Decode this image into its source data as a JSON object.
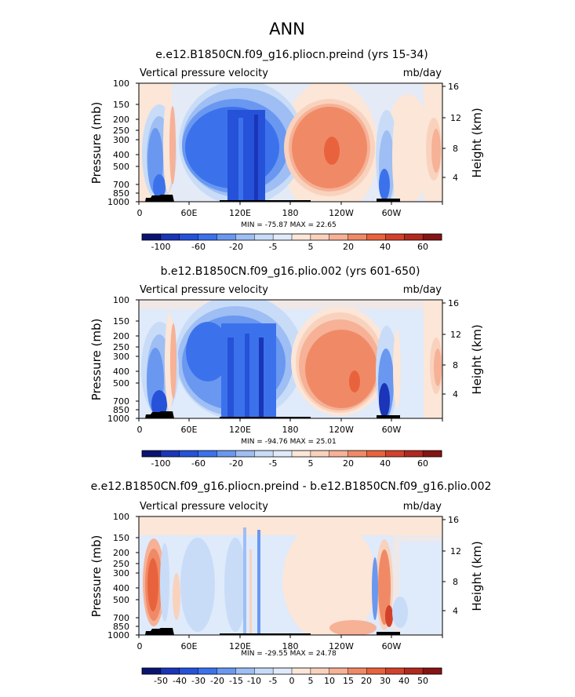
{
  "page_title": "ANN",
  "chart_data": [
    {
      "type": "heatmap",
      "title": "e.e12.B1850CN.f09_g16.pliocn.preind (yrs 15-34)",
      "left_label": "Vertical pressure velocity",
      "right_label": "mb/day",
      "ylabel": "Pressure (mb)",
      "ylabel_right": "Height (km)",
      "xticks": [
        "0",
        "60E",
        "120E",
        "180",
        "120W",
        "60W"
      ],
      "yticks": [
        "100",
        "150",
        "200",
        "250",
        "300",
        "400",
        "500",
        "700",
        "850",
        "1000"
      ],
      "yticks_right": [
        "16",
        "12",
        "8",
        "4"
      ],
      "stats": "MIN = -75.87   MAX =  22.65",
      "colorbar_labels": [
        "-100",
        "-60",
        "-20",
        "-5",
        "5",
        "20",
        "40",
        "60"
      ]
    },
    {
      "type": "heatmap",
      "title": "b.e12.B1850CN.f09_g16.plio.002 (yrs 601-650)",
      "left_label": "Vertical pressure velocity",
      "right_label": "mb/day",
      "ylabel": "Pressure (mb)",
      "ylabel_right": "Height (km)",
      "xticks": [
        "0",
        "60E",
        "120E",
        "180",
        "120W",
        "60W"
      ],
      "yticks": [
        "100",
        "150",
        "200",
        "250",
        "300",
        "400",
        "500",
        "700",
        "850",
        "1000"
      ],
      "yticks_right": [
        "16",
        "12",
        "8",
        "4"
      ],
      "stats": "MIN = -94.76   MAX =  25.01",
      "colorbar_labels": [
        "-100",
        "-60",
        "-20",
        "-5",
        "5",
        "20",
        "40",
        "60"
      ]
    },
    {
      "type": "heatmap",
      "title": "e.e12.B1850CN.f09_g16.pliocn.preind - b.e12.B1850CN.f09_g16.plio.002",
      "left_label": "Vertical pressure velocity",
      "right_label": "mb/day",
      "ylabel": "Pressure (mb)",
      "ylabel_right": "Height (km)",
      "xticks": [
        "0",
        "60E",
        "120E",
        "180",
        "120W",
        "60W"
      ],
      "yticks": [
        "100",
        "150",
        "200",
        "250",
        "300",
        "400",
        "500",
        "700",
        "850",
        "1000"
      ],
      "yticks_right": [
        "16",
        "12",
        "8",
        "4"
      ],
      "stats": "MIN = -29.55   MAX =  24.78",
      "colorbar_labels": [
        "-50",
        "-40",
        "-30",
        "-20",
        "-15",
        "-10",
        "-5",
        "0",
        "5",
        "10",
        "15",
        "20",
        "30",
        "40",
        "50"
      ]
    }
  ],
  "colors": {
    "ramp": [
      "#0a1470",
      "#1a35b8",
      "#2552d8",
      "#3b72ec",
      "#6a98f0",
      "#9ebef4",
      "#c8dcf8",
      "#dfeafb",
      "#fbe6d8",
      "#f9d2bd",
      "#f6b196",
      "#f08a66",
      "#e8633d",
      "#d2422a",
      "#b02a1f",
      "#851414"
    ]
  }
}
